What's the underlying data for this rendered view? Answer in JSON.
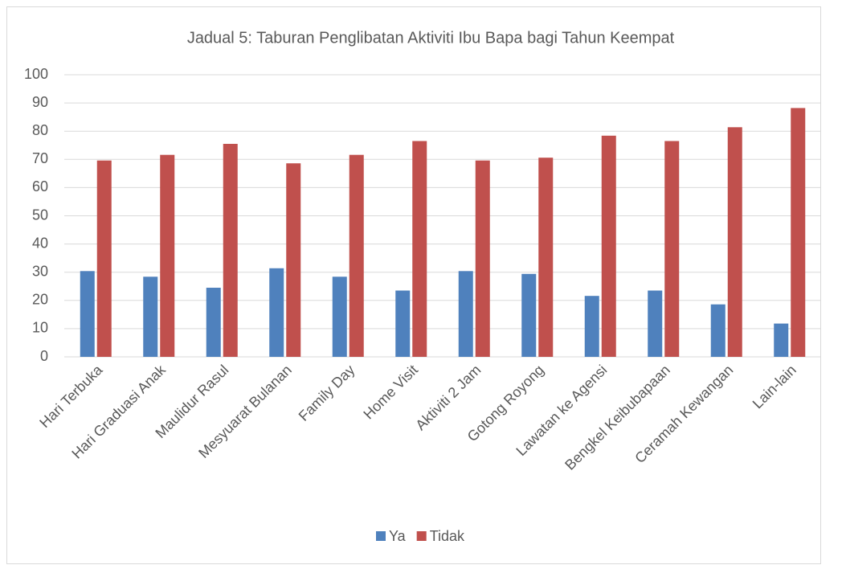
{
  "chart_data": {
    "type": "bar",
    "title": "Jadual 5: Taburan Penglibatan Aktiviti Ibu Bapa bagi Tahun Keempat",
    "categories": [
      "Hari Terbuka",
      "Hari Graduasi Anak",
      "Maulidur Rasul",
      "Mesyuarat Bulanan",
      "Family Day",
      "Home Visit",
      "Aktiviti 2 Jam",
      "Gotong Royong",
      "Lawatan ke Agensi",
      "Bengkel Keibubapaan",
      "Ceramah Kewangan",
      "Lain-lain"
    ],
    "series": [
      {
        "name": "Ya",
        "color": "#4f81bd",
        "values": [
          30.4,
          28.4,
          24.5,
          31.4,
          28.4,
          23.5,
          30.4,
          29.4,
          21.6,
          23.5,
          18.6,
          11.8
        ]
      },
      {
        "name": "Tidak",
        "color": "#c0504d",
        "values": [
          69.6,
          71.6,
          75.5,
          68.6,
          71.6,
          76.5,
          69.6,
          70.6,
          78.4,
          76.5,
          81.4,
          88.2
        ]
      }
    ],
    "ylim": [
      0,
      100
    ],
    "yticks": [
      0,
      10,
      20,
      30,
      40,
      50,
      60,
      70,
      80,
      90,
      100
    ],
    "grid": true,
    "legend": "bottom"
  }
}
